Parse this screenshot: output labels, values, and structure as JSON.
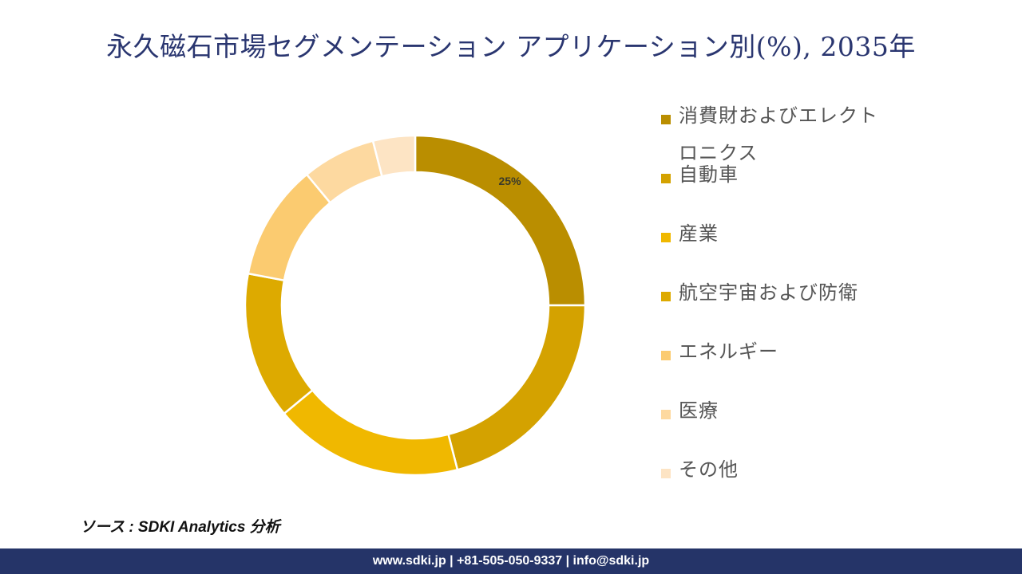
{
  "title": "永久磁石市場セグメンテーション アプリケーション別(%), 2035年",
  "chart_data": {
    "type": "pie",
    "donut": true,
    "title": "永久磁石市場セグメンテーション アプリケーション別(%), 2035年",
    "categories": [
      "消費財およびエレクトロニクス",
      "自動車",
      "産業",
      "航空宇宙および防衛",
      "エネルギー",
      "医療",
      "その他"
    ],
    "values": [
      25,
      21,
      18,
      14,
      11,
      7,
      4
    ],
    "unit": "%",
    "data_labels": [
      "25%",
      "",
      "",
      "",
      "",
      "",
      ""
    ],
    "colors": [
      "#BA8E00",
      "#D4A200",
      "#F0B800",
      "#DDAA00",
      "#FBCB70",
      "#FDD9A0",
      "#FDE4C4"
    ],
    "legend_position": "right"
  },
  "source": "ソース : SDKI Analytics 分析",
  "footer": "www.sdki.jp | +81-505-050-9337 | info@sdki.jp"
}
